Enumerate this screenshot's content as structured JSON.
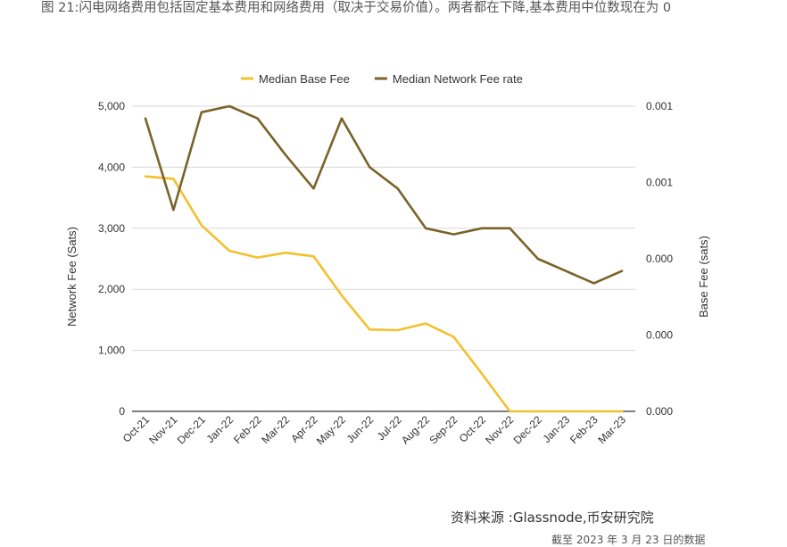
{
  "caption": "图 21:闪电网络费用包括固定基本费用和网络费用（取决于交易价值）。两者都在下降,基本费用中位数现在为 0",
  "source": "资料来源 :Glassnode,币安研究院",
  "cutoff_note": "截至 2023 年 3 月 23 日的数据",
  "chart_data": {
    "type": "line",
    "categories": [
      "Oct-21",
      "Nov-21",
      "Dec-21",
      "Jan-22",
      "Feb-22",
      "Mar-22",
      "Apr-22",
      "May-22",
      "Jun-22",
      "Jul-22",
      "Aug-22",
      "Sep-22",
      "Oct-22",
      "Nov-22",
      "Dec-22",
      "Jan-23",
      "Feb-23",
      "Mar-23"
    ],
    "series": [
      {
        "name": "Median Base Fee",
        "color": "#f2c12e",
        "axis": "left",
        "values": [
          3850,
          3810,
          3050,
          2630,
          2520,
          2600,
          2540,
          1900,
          1340,
          1330,
          1440,
          1220,
          620,
          0,
          0,
          0,
          0,
          0
        ]
      },
      {
        "name": "Median Network Fee rate",
        "color": "#7a6328",
        "axis": "right",
        "values": [
          0.00096,
          0.00066,
          0.00098,
          0.001,
          0.00096,
          0.00084,
          0.00073,
          0.00096,
          0.0008,
          0.00073,
          0.0006,
          0.00058,
          0.0006,
          0.0006,
          0.0005,
          0.00046,
          0.00042,
          0.00046
        ]
      }
    ],
    "ylabel_left": "Network Fee (Sats)",
    "ylabel_right": "Base Fee (sats)",
    "ylim_left": [
      0,
      5000
    ],
    "ylim_right": [
      0,
      0.001
    ],
    "yticks_left": [
      "5,000",
      "4,000",
      "3,000",
      "2,000",
      "1,000",
      "0"
    ],
    "yticks_right": [
      "0.001",
      "0.001",
      "0.000",
      "0.000",
      "0.000"
    ],
    "legend_position": "top",
    "grid": true
  }
}
